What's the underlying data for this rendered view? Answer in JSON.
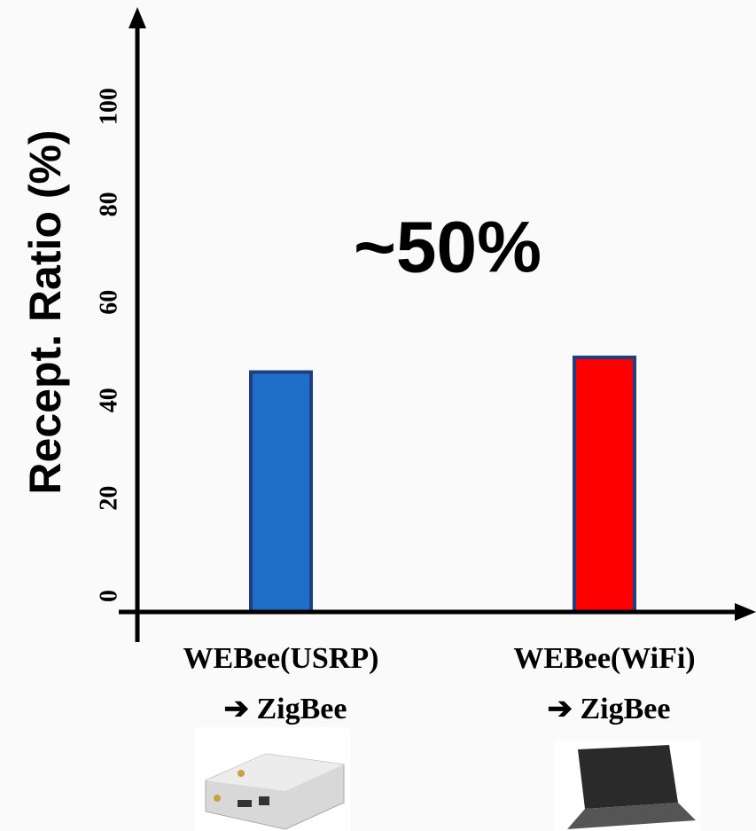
{
  "chart_data": {
    "type": "bar",
    "y_label": "Recept. Ratio (%)",
    "annotation": "~50%",
    "categories": [
      [
        "WEBee(USRP)",
        "➔ ZigBee"
      ],
      [
        "WEBee(WiFi)",
        "➔ ZigBee"
      ]
    ],
    "values": [
      49,
      52
    ],
    "colors": [
      "#1e6fc8",
      "#ff0000"
    ],
    "ylim": [
      0,
      120
    ],
    "yticks": [
      0,
      20,
      40,
      60,
      80,
      100
    ],
    "grid": false
  }
}
